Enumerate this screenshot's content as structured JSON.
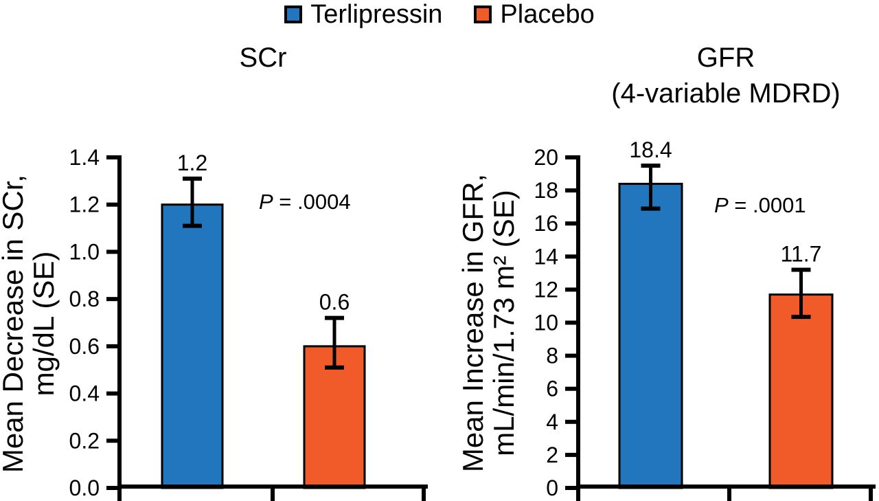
{
  "figure": {
    "background": "#ffffff",
    "text_color": "#000000"
  },
  "legend": {
    "position": "top",
    "items": [
      {
        "label": "Terlipressin",
        "color": "#2176BD"
      },
      {
        "label": "Placebo",
        "color": "#F15A29"
      }
    ]
  },
  "chart_data": [
    {
      "type": "bar",
      "title": "SCr",
      "ylabel": "Mean Decrease in SCr,\nmg/dL (SE)",
      "xlabel": "",
      "grid": false,
      "categories": [
        "Terlipressin",
        "Placebo"
      ],
      "values": [
        1.2,
        0.6
      ],
      "value_labels": [
        "1.2",
        "0.6"
      ],
      "error_bars": [
        {
          "low": 1.11,
          "high": 1.31
        },
        {
          "low": 0.51,
          "high": 0.72
        }
      ],
      "bar_colors": [
        "#2176BD",
        "#F15A29"
      ],
      "ylim": [
        0,
        1.4
      ],
      "ytick_step": 0.2,
      "ytick_labels": [
        "0.0",
        "0.2",
        "0.4",
        "0.6",
        "0.8",
        "1.0",
        "1.2",
        "1.4"
      ],
      "p_symbol": "P",
      "p_rest": " = .0004"
    },
    {
      "type": "bar",
      "title": "GFR\n(4-variable MDRD)",
      "ylabel": "Mean Increase in GFR,\nmL/min/1.73 m² (SE)",
      "xlabel": "",
      "grid": false,
      "categories": [
        "Terlipressin",
        "Placebo"
      ],
      "values": [
        18.4,
        11.7
      ],
      "value_labels": [
        "18.4",
        "11.7"
      ],
      "error_bars": [
        {
          "low": 16.9,
          "high": 19.5
        },
        {
          "low": 10.35,
          "high": 13.2
        }
      ],
      "bar_colors": [
        "#2176BD",
        "#F15A29"
      ],
      "ylim": [
        0,
        20
      ],
      "ytick_step": 2,
      "ytick_labels": [
        "0",
        "2",
        "4",
        "6",
        "8",
        "10",
        "12",
        "14",
        "16",
        "18",
        "20"
      ],
      "p_symbol": "P",
      "p_rest": " = .0001"
    }
  ]
}
